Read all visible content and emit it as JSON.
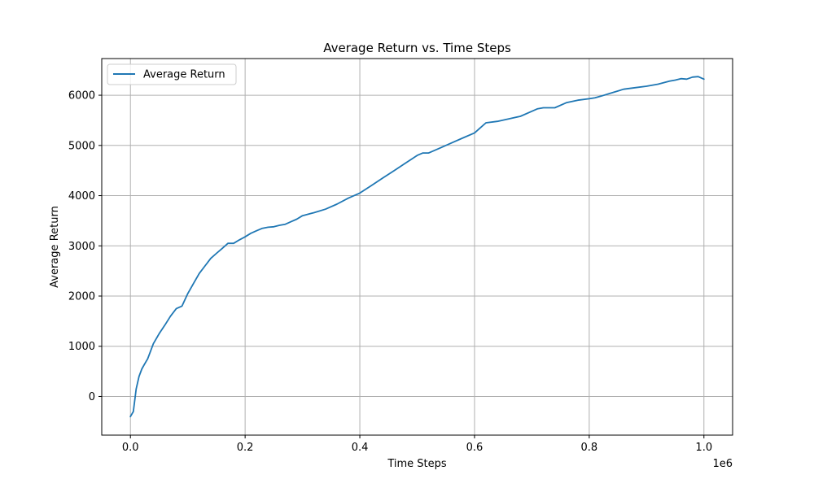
{
  "chart_data": {
    "type": "line",
    "title": "Average Return vs. Time Steps",
    "xlabel": "Time Steps",
    "ylabel": "Average Return",
    "x_offset_label": "1e6",
    "xlim": [
      -50000,
      1050000
    ],
    "ylim": [
      -770,
      6730
    ],
    "x_ticks": [
      0,
      200000,
      400000,
      600000,
      800000,
      1000000
    ],
    "x_tick_labels": [
      "0.0",
      "0.2",
      "0.4",
      "0.6",
      "0.8",
      "1.0"
    ],
    "y_ticks": [
      0,
      1000,
      2000,
      3000,
      4000,
      5000,
      6000
    ],
    "y_tick_labels": [
      "0",
      "1000",
      "2000",
      "3000",
      "4000",
      "5000",
      "6000"
    ],
    "grid": true,
    "legend_position": "top-left",
    "series": [
      {
        "name": "Average Return",
        "color": "#1f77b4",
        "x": [
          0,
          5000,
          10000,
          15000,
          20000,
          25000,
          30000,
          35000,
          40000,
          50000,
          60000,
          70000,
          80000,
          90000,
          100000,
          110000,
          120000,
          130000,
          140000,
          150000,
          160000,
          170000,
          180000,
          190000,
          200000,
          210000,
          220000,
          230000,
          240000,
          250000,
          260000,
          270000,
          280000,
          290000,
          300000,
          320000,
          340000,
          360000,
          380000,
          400000,
          420000,
          440000,
          460000,
          480000,
          500000,
          510000,
          520000,
          540000,
          560000,
          580000,
          600000,
          610000,
          620000,
          640000,
          660000,
          680000,
          700000,
          710000,
          720000,
          740000,
          760000,
          780000,
          800000,
          810000,
          820000,
          840000,
          860000,
          880000,
          900000,
          920000,
          940000,
          950000,
          960000,
          970000,
          980000,
          990000,
          1000000
        ],
        "y": [
          -400,
          -300,
          150,
          400,
          550,
          650,
          750,
          900,
          1050,
          1250,
          1420,
          1600,
          1750,
          1800,
          2050,
          2250,
          2450,
          2600,
          2750,
          2850,
          2950,
          3050,
          3050,
          3120,
          3180,
          3250,
          3300,
          3350,
          3370,
          3380,
          3410,
          3430,
          3480,
          3530,
          3600,
          3660,
          3730,
          3830,
          3950,
          4050,
          4200,
          4350,
          4500,
          4650,
          4800,
          4850,
          4850,
          4950,
          5050,
          5150,
          5250,
          5350,
          5450,
          5480,
          5530,
          5580,
          5680,
          5730,
          5750,
          5750,
          5850,
          5900,
          5930,
          5950,
          5980,
          6050,
          6120,
          6150,
          6180,
          6220,
          6280,
          6300,
          6330,
          6320,
          6360,
          6370,
          6320
        ]
      }
    ]
  }
}
